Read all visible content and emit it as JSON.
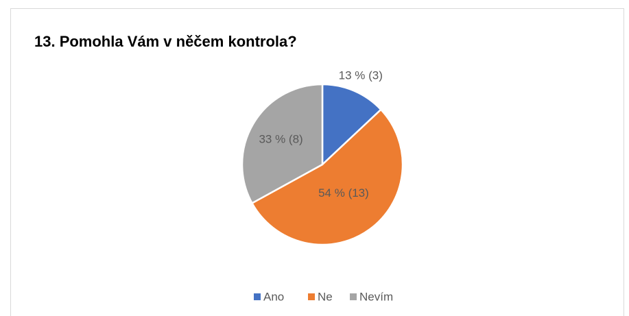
{
  "chart_data": {
    "type": "pie",
    "title": "13. Pomohla Vám v něčem kontrola?",
    "categories": [
      "Ano",
      "Ne",
      "Nevím"
    ],
    "values": [
      13,
      54,
      33
    ],
    "value_labels": [
      "13 % (3)",
      "54 % (13)",
      "33 % (8)"
    ],
    "colors": [
      "#4472c4",
      "#ed7d31",
      "#a5a5a5"
    ],
    "legend": "bottom"
  }
}
